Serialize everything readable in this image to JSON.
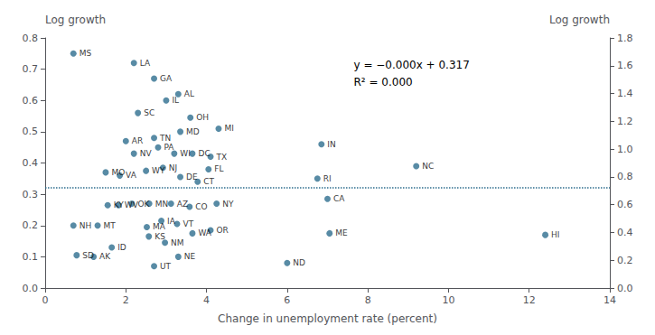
{
  "chart_data": {
    "type": "scatter",
    "xlabel": "Change in unemployment rate (percent)",
    "ylabel": "Log growth",
    "y2label": "Log growth",
    "annotations": [
      "y = −0.000x + 0.317",
      "R² = 0.000"
    ],
    "labels": [
      "MS",
      "LA",
      "GA",
      "AL",
      "SC",
      "IL",
      "AR",
      "TN",
      "MD",
      "OH",
      "MI",
      "NV",
      "PA",
      "WI",
      "DC",
      "TX",
      "MO",
      "VA",
      "WY",
      "NJ",
      "DE",
      "CT",
      "FL",
      "RI",
      "KY",
      "WV",
      "OK",
      "MN",
      "AZ",
      "CO",
      "NY",
      "NH",
      "MT",
      "MA",
      "IA",
      "VT",
      "WA",
      "OR",
      "SD",
      "AK",
      "ID",
      "KS",
      "UT",
      "NM",
      "NE",
      "IN",
      "NC",
      "CA",
      "ME",
      "ND",
      "HI"
    ],
    "x": [
      0.7,
      2.2,
      2.7,
      3.3,
      2.3,
      3.0,
      2.0,
      2.7,
      3.35,
      3.6,
      4.3,
      2.2,
      2.8,
      3.2,
      3.65,
      4.1,
      1.5,
      1.85,
      2.5,
      2.92,
      3.35,
      3.78,
      4.05,
      6.75,
      1.55,
      1.82,
      2.15,
      2.58,
      3.12,
      3.58,
      4.25,
      0.7,
      1.3,
      2.52,
      2.88,
      3.27,
      3.65,
      4.1,
      0.78,
      1.2,
      1.65,
      2.57,
      2.7,
      2.97,
      3.3,
      6.85,
      9.2,
      7.0,
      7.05,
      6.0,
      12.4
    ],
    "values": [
      0.75,
      0.72,
      0.67,
      0.62,
      0.56,
      0.6,
      0.47,
      0.48,
      0.5,
      0.545,
      0.51,
      0.43,
      0.45,
      0.43,
      0.43,
      0.42,
      0.37,
      0.36,
      0.375,
      0.385,
      0.355,
      0.34,
      0.38,
      0.35,
      0.265,
      0.265,
      0.27,
      0.27,
      0.27,
      0.26,
      0.27,
      0.2,
      0.2,
      0.195,
      0.215,
      0.205,
      0.175,
      0.185,
      0.105,
      0.1,
      0.13,
      0.165,
      0.07,
      0.145,
      0.1,
      0.46,
      0.39,
      0.285,
      0.175,
      0.08,
      0.17
    ],
    "color": "#2e6e8e",
    "hline": {
      "y": 0.317,
      "color": "#2e6e8e",
      "line_style": "dotted"
    },
    "xlim": [
      0,
      14
    ],
    "xticks": [
      0,
      2,
      4,
      6,
      8,
      10,
      12,
      14
    ],
    "ylim": [
      0.0,
      0.8
    ],
    "yticks": [
      {
        "value": 0,
        "label": "0.0"
      },
      0.1,
      0.2,
      0.3,
      0.4,
      0.5,
      0.6,
      0.7,
      0.8
    ],
    "y2lim": [
      0.0,
      1.8
    ],
    "y2ticks": [
      {
        "value": 0,
        "label": "0.0"
      },
      0.2,
      0.4,
      0.6,
      0.8,
      {
        "value": 1,
        "label": "1.0"
      },
      1.2,
      1.4,
      1.6,
      1.8
    ],
    "grid": false
  }
}
